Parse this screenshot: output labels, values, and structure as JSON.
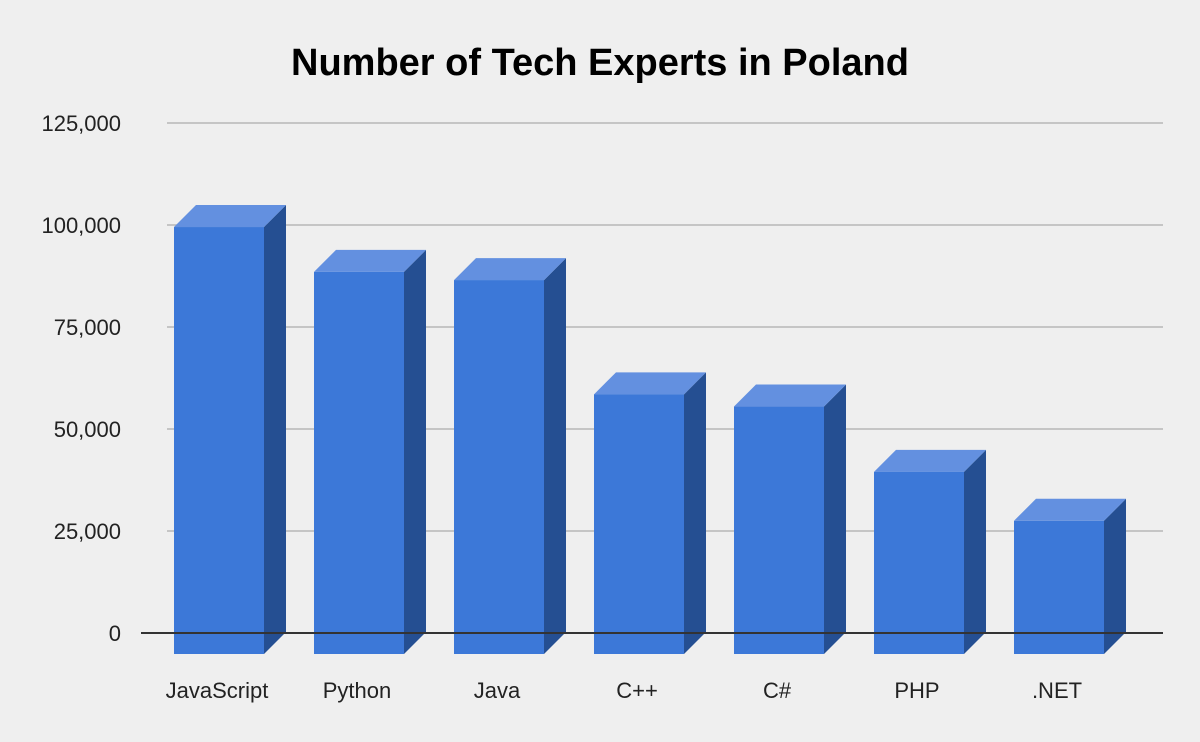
{
  "chart_data": {
    "type": "bar",
    "style": "3d",
    "title": "Number of Tech Experts in Poland",
    "xlabel": "",
    "ylabel": "",
    "categories": [
      "JavaScript",
      "Python",
      "Java",
      "C++",
      "C#",
      "PHP",
      ".NET"
    ],
    "values": [
      99500,
      88500,
      86500,
      58500,
      55500,
      39500,
      27500
    ],
    "ylim": [
      0,
      125000
    ],
    "yticks": [
      0,
      25000,
      50000,
      75000,
      100000,
      125000
    ],
    "ytick_labels": [
      "0",
      "25,000",
      "50,000",
      "75,000",
      "100,000",
      "125,000"
    ],
    "grid": true,
    "legend": "none",
    "colors": {
      "background": "#efefef",
      "bar_front": "#3c78d8",
      "bar_top": "#6390e0",
      "bar_side": "#254f92",
      "gridline": "#b7b7b7",
      "baseline": "#333333"
    }
  }
}
